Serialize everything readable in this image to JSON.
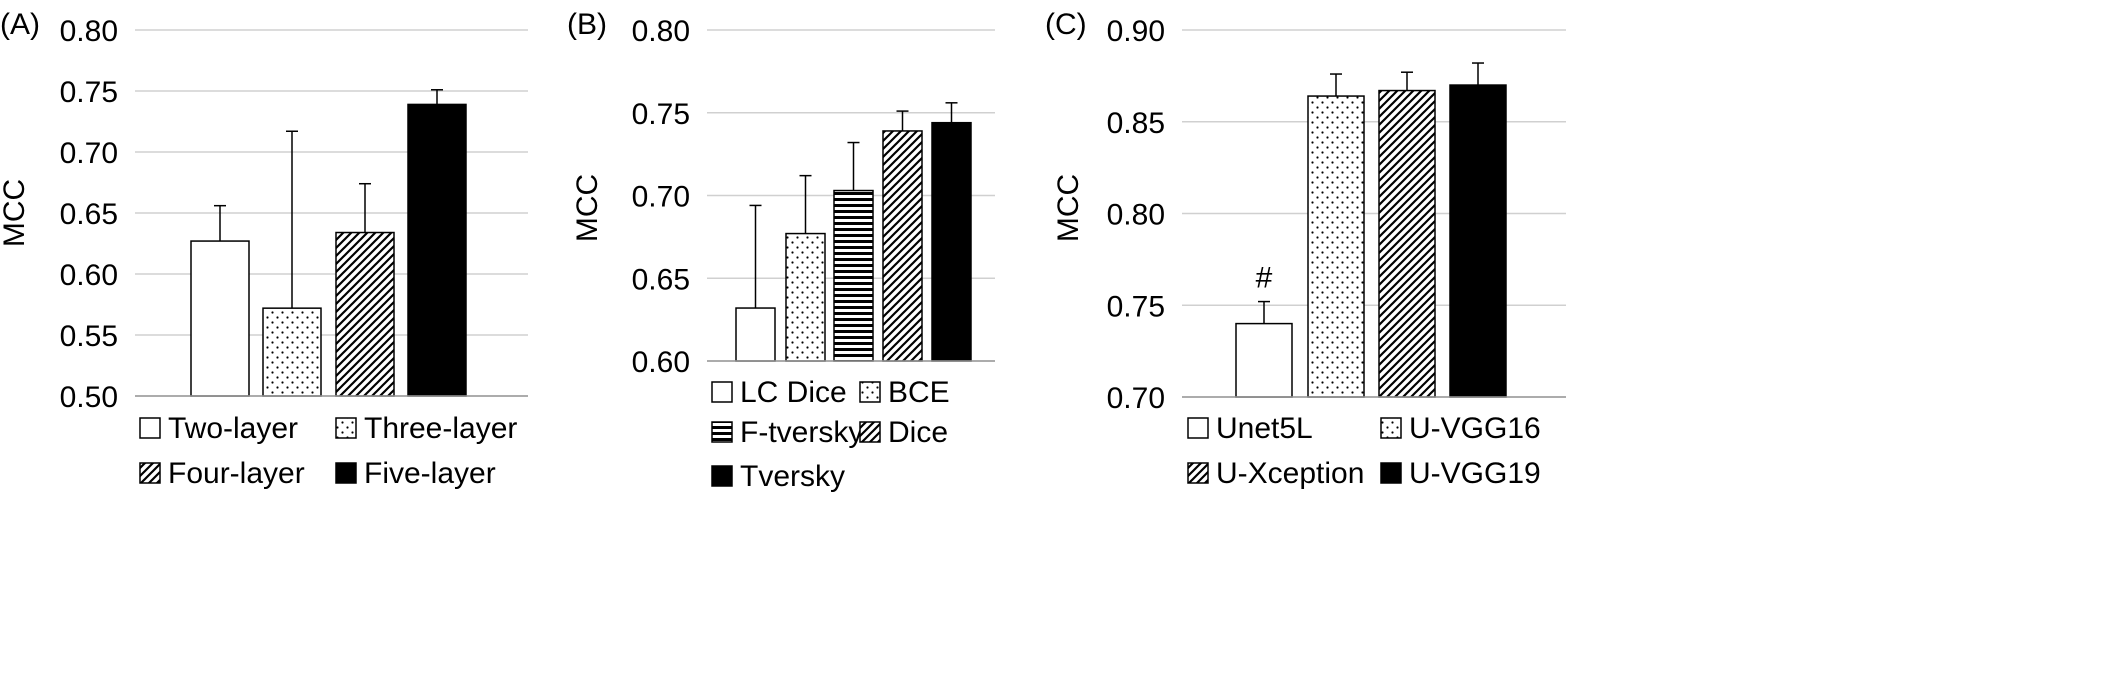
{
  "chart_data": [
    {
      "type": "bar",
      "panel_label": "(A)",
      "ylabel": "MCC",
      "ylim": [
        0.5,
        0.8
      ],
      "yticks": [
        "0.50",
        "0.55",
        "0.60",
        "0.65",
        "0.70",
        "0.75",
        "0.80"
      ],
      "grid": true,
      "legend": "bottom",
      "categories": [
        "Two-layer",
        "Three-layer",
        "Four-layer",
        "Five-layer"
      ],
      "values": [
        0.627,
        0.572,
        0.634,
        0.739
      ],
      "errors": [
        0.029,
        0.145,
        0.04,
        0.012
      ],
      "patterns": [
        "white",
        "dots",
        "diagonal",
        "black"
      ],
      "annotations": [
        "",
        "",
        "",
        ""
      ]
    },
    {
      "type": "bar",
      "panel_label": "(B)",
      "ylabel": "MCC",
      "ylim": [
        0.6,
        0.8
      ],
      "yticks": [
        "0.60",
        "0.65",
        "0.70",
        "0.75",
        "0.80"
      ],
      "grid": true,
      "legend": "bottom",
      "categories": [
        "LC Dice",
        "BCE",
        "F-tversky",
        "Dice",
        "Tversky"
      ],
      "values": [
        0.632,
        0.677,
        0.703,
        0.739,
        0.744
      ],
      "errors": [
        0.062,
        0.035,
        0.029,
        0.012,
        0.012
      ],
      "patterns": [
        "white",
        "dots",
        "horizontal",
        "diagonal",
        "black"
      ],
      "annotations": [
        "",
        "",
        "",
        "",
        ""
      ]
    },
    {
      "type": "bar",
      "panel_label": "(C)",
      "ylabel": "MCC",
      "ylim": [
        0.7,
        0.9
      ],
      "yticks": [
        "0.70",
        "0.75",
        "0.80",
        "0.85",
        "0.90"
      ],
      "grid": true,
      "legend": "bottom",
      "categories": [
        "Unet5L",
        "U-VGG16",
        "U-Xception",
        "U-VGG19"
      ],
      "values": [
        0.74,
        0.864,
        0.867,
        0.87
      ],
      "errors": [
        0.012,
        0.012,
        0.01,
        0.012
      ],
      "patterns": [
        "white",
        "dots",
        "diagonal",
        "black"
      ],
      "annotations": [
        "#",
        "",
        "",
        ""
      ]
    }
  ]
}
